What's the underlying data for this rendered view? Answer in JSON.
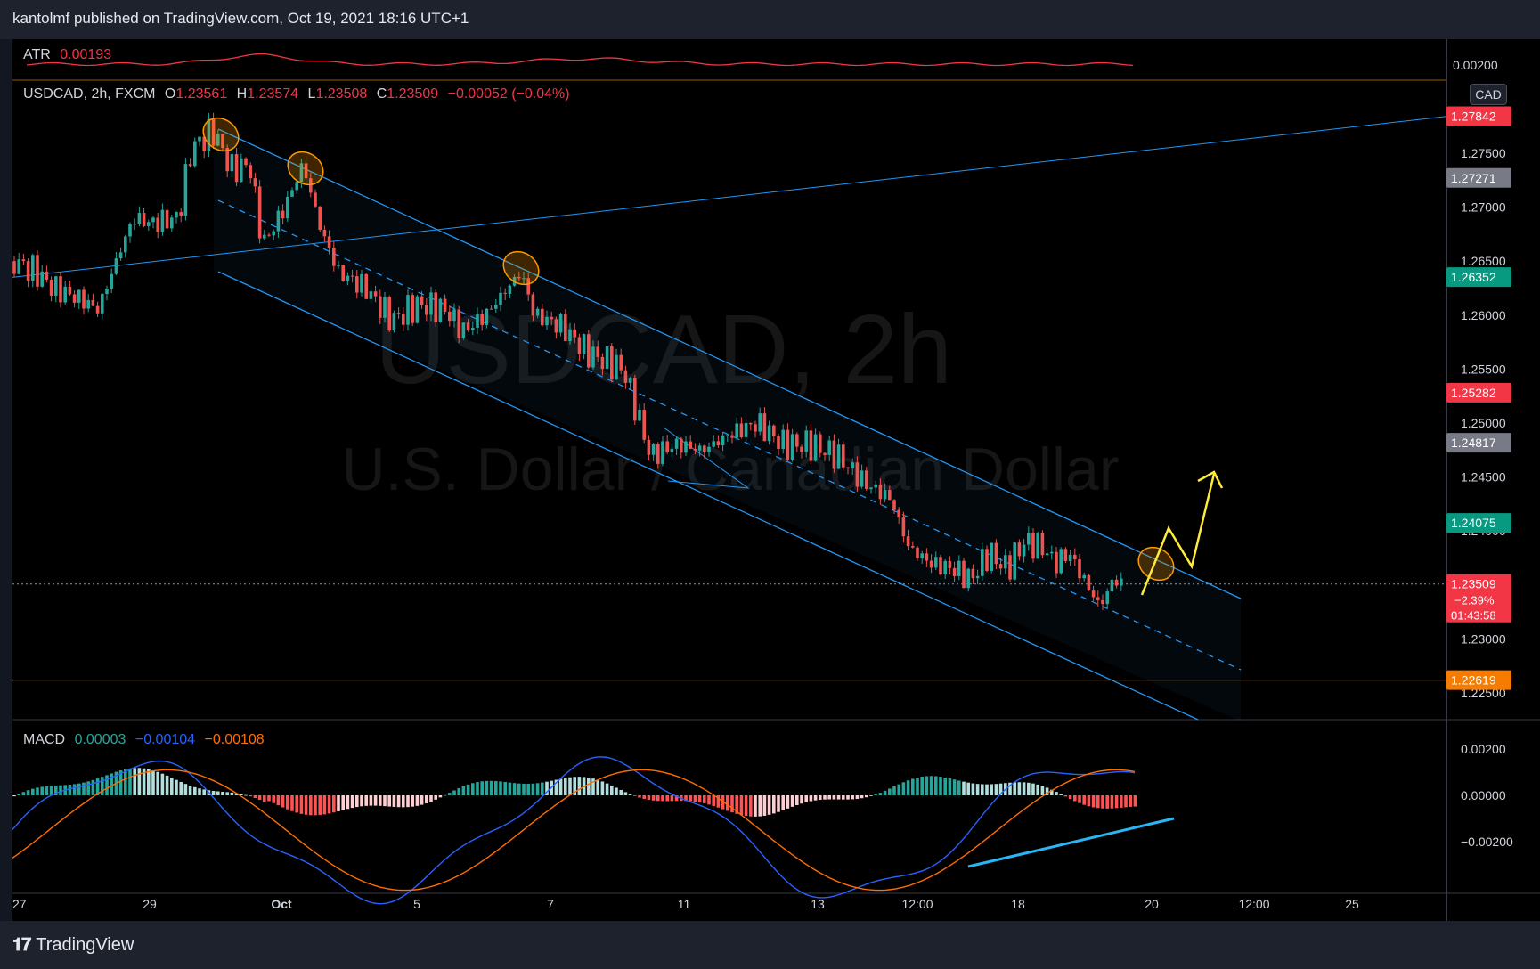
{
  "header": {
    "publish_text": "kantolmf published on TradingView.com, Oct 19, 2021 18:16 UTC+1"
  },
  "footer": {
    "brand": "TradingView",
    "logo_icon": "tradingview-logo-icon"
  },
  "currency_button": "CAD",
  "watermark": {
    "line1": "USDCAD, 2h",
    "line2": "U.S. Dollar / Canadian Dollar"
  },
  "colors": {
    "up": "#26a69a",
    "down": "#ef5350",
    "channel": "#2196f3",
    "support": "#ff9800",
    "arrow": "#ffeb3b",
    "atr": "#f23645",
    "macd": "#2962ff",
    "signal": "#ff6d00"
  },
  "atr": {
    "label": "ATR",
    "value": "0.00193",
    "axis_tick": "0.00200"
  },
  "price_legend": {
    "symbol": "USDCAD, 2h, FXCM",
    "o_label": "O",
    "o": "1.23561",
    "h_label": "H",
    "h": "1.23574",
    "l_label": "L",
    "l": "1.23508",
    "c_label": "C",
    "c": "1.23509",
    "change": "−0.00052 (−0.04%)"
  },
  "macd_legend": {
    "label": "MACD",
    "hist": "0.00003",
    "macd": "−0.00104",
    "signal": "−0.00108"
  },
  "price_axis_ticks": [
    "1.27500",
    "1.27000",
    "1.26500",
    "1.26000",
    "1.25500",
    "1.25000",
    "1.24500",
    "1.24000",
    "1.23000",
    "1.22500"
  ],
  "price_badges": [
    {
      "text": "1.27842",
      "bg": "#f23645",
      "price": 1.27842
    },
    {
      "text": "1.27271",
      "bg": "#787b86",
      "price": 1.27271
    },
    {
      "text": "1.26352",
      "bg": "#089981",
      "price": 1.26352
    },
    {
      "text": "1.25282",
      "bg": "#f23645",
      "price": 1.25282
    },
    {
      "text": "1.24817",
      "bg": "#787b86",
      "price": 1.24817
    },
    {
      "text": "1.24075",
      "bg": "#089981",
      "price": 1.24075
    },
    {
      "text": "1.22619",
      "bg": "#f57c00",
      "price": 1.22619
    }
  ],
  "last_price": {
    "price": "1.23509",
    "change_pct": "−2.39%",
    "countdown": "01:43:58",
    "value": 1.23509
  },
  "macd_axis_ticks": [
    "0.00200",
    "0.00000",
    "−0.00200"
  ],
  "time_axis": [
    "27",
    "29",
    "Oct",
    "5",
    "7",
    "11",
    "13",
    "12:00",
    "18",
    "20",
    "12:00",
    "25"
  ],
  "chart_data": [
    {
      "type": "candlestick",
      "title": "USDCAD, 2h, FXCM",
      "ylim": [
        1.222,
        1.281
      ],
      "x_range": [
        "Sep 27, 2021",
        "Oct 26, 2021"
      ],
      "series": [
        {
          "name": "USDCAD",
          "style": "candles",
          "approx_path": [
            [
              "Sep 27",
              1.265
            ],
            [
              "Sep 28",
              1.261
            ],
            [
              "Sep 29",
              1.27
            ],
            [
              "Sep 29 12:00",
              1.268
            ],
            [
              "Sep 30",
              1.2775
            ],
            [
              "Oct 1",
              1.274
            ],
            [
              "Oct 1 12:00",
              1.266
            ],
            [
              "Oct 2",
              1.274
            ],
            [
              "Oct 3",
              1.267
            ],
            [
              "Oct 4",
              1.263
            ],
            [
              "Oct 5",
              1.259
            ],
            [
              "Oct 6",
              1.262
            ],
            [
              "Oct 6 12:00",
              1.264
            ],
            [
              "Oct 7",
              1.26
            ],
            [
              "Oct 8",
              1.256
            ],
            [
              "Oct 9",
              1.253
            ],
            [
              "Oct 10",
              1.247
            ],
            [
              "Oct 11",
              1.249
            ],
            [
              "Oct 12",
              1.25
            ],
            [
              "Oct 13",
              1.247
            ],
            [
              "Oct 14",
              1.244
            ],
            [
              "Oct 15",
              1.237
            ],
            [
              "Oct 16",
              1.2355
            ],
            [
              "Oct 17",
              1.237
            ],
            [
              "Oct 18",
              1.239
            ],
            [
              "Oct 19",
              1.232
            ],
            [
              "Oct 19 18:00",
              1.23509
            ]
          ]
        },
        {
          "name": "Resistance line",
          "style": "line",
          "from": [
            "Sep 27",
            1.2635
          ],
          "to": [
            "Oct 26",
            1.2784
          ]
        }
      ],
      "annotations": [
        "Descending parallel channel (upper, middle dashed, lower)",
        "Swing-high markers circled at Sep 30, Oct 1, Oct 6, Oct 19",
        "Horizontal support at 1.22619",
        "Projected breakout arrow upward"
      ]
    },
    {
      "type": "line",
      "title": "ATR",
      "ylim": [
        0.0,
        0.003
      ],
      "series": [
        {
          "name": "ATR",
          "last": 0.00193
        }
      ]
    },
    {
      "type": "bar",
      "title": "MACD",
      "ylim": [
        -0.0035,
        0.0022
      ],
      "series": [
        {
          "name": "Histogram",
          "last": 3e-05
        },
        {
          "name": "MACD",
          "last": -0.00104
        },
        {
          "name": "Signal",
          "last": -0.00108
        }
      ],
      "annotations": [
        "Bullish divergence trendline under MACD lows"
      ]
    }
  ]
}
